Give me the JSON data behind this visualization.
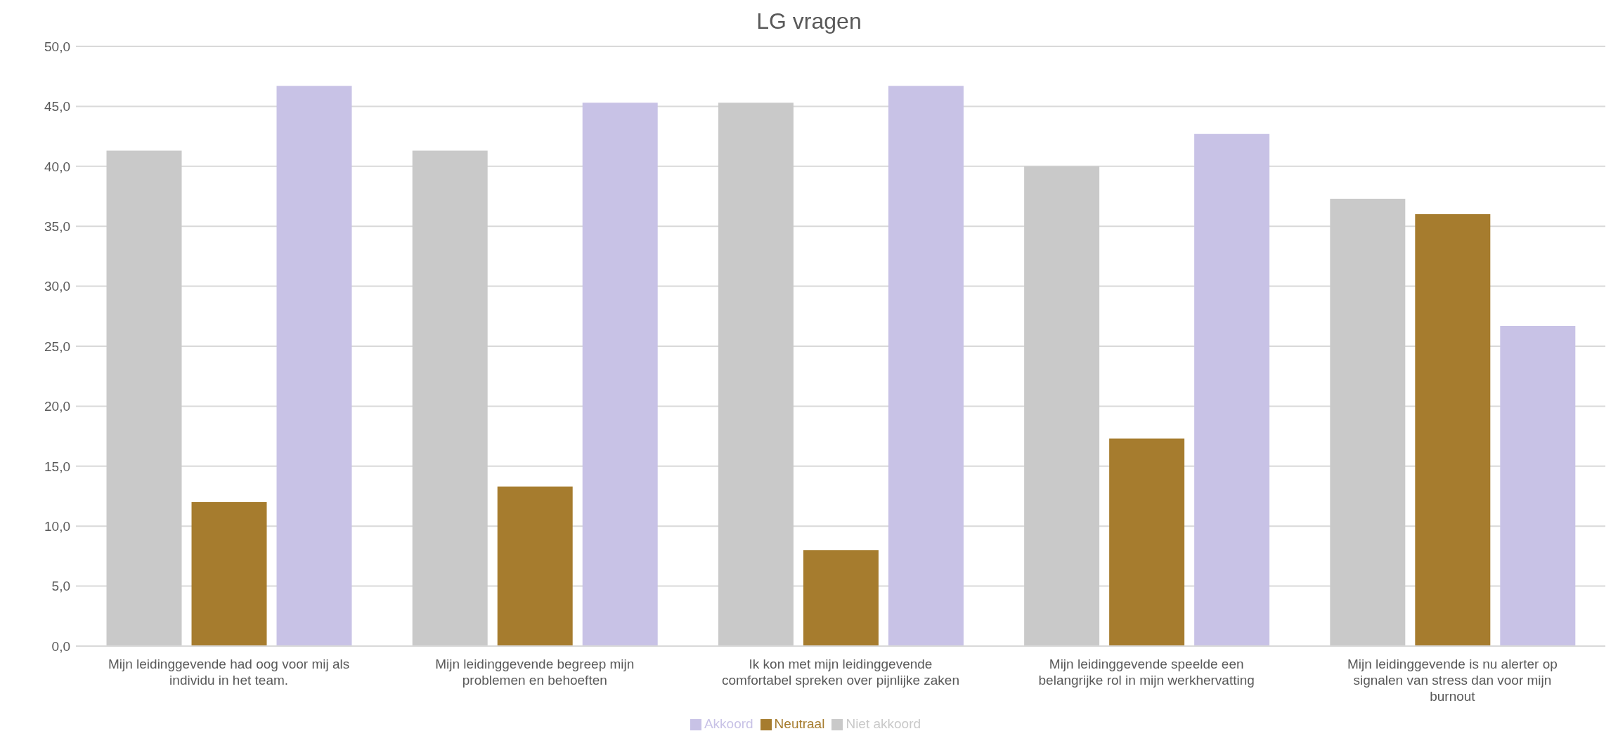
{
  "chart_data": {
    "type": "bar",
    "title": "LG vragen",
    "categories": [
      "Mijn leidinggevende had oog voor mij als individu in het team.",
      "Mijn leidinggevende begreep mijn problemen en behoeften",
      "Ik kon met mijn leidinggevende comfortabel spreken over pijnlijke zaken",
      "Mijn leidinggevende speelde een belangrijke rol in mijn werkhervatting",
      "Mijn leidinggevende is nu alerter op signalen van stress dan voor mijn burnout"
    ],
    "series": [
      {
        "name": "Niet akkoord",
        "color": "#c9c9c9",
        "values": [
          41.3,
          41.3,
          45.3,
          40.0,
          37.3
        ]
      },
      {
        "name": "Neutraal",
        "color": "#a67c2e",
        "values": [
          12.0,
          13.3,
          8.0,
          17.3,
          36.0
        ]
      },
      {
        "name": "Akkoord",
        "color": "#c8c2e6",
        "values": [
          46.7,
          45.3,
          46.7,
          42.7,
          26.7
        ]
      }
    ],
    "ylim": [
      0,
      50
    ],
    "yticks": [
      {
        "value": 0,
        "label": "0,0"
      },
      {
        "value": 5,
        "label": "5,0"
      },
      {
        "value": 10,
        "label": "10,0"
      },
      {
        "value": 15,
        "label": "15,0"
      },
      {
        "value": 20,
        "label": "20,0"
      },
      {
        "value": 25,
        "label": "25,0"
      },
      {
        "value": 30,
        "label": "30,0"
      },
      {
        "value": 35,
        "label": "35,0"
      },
      {
        "value": 40,
        "label": "40,0"
      },
      {
        "value": 45,
        "label": "45,0"
      },
      {
        "value": 50,
        "label": "50,0"
      }
    ],
    "grid": "y",
    "legend": "bottom"
  }
}
